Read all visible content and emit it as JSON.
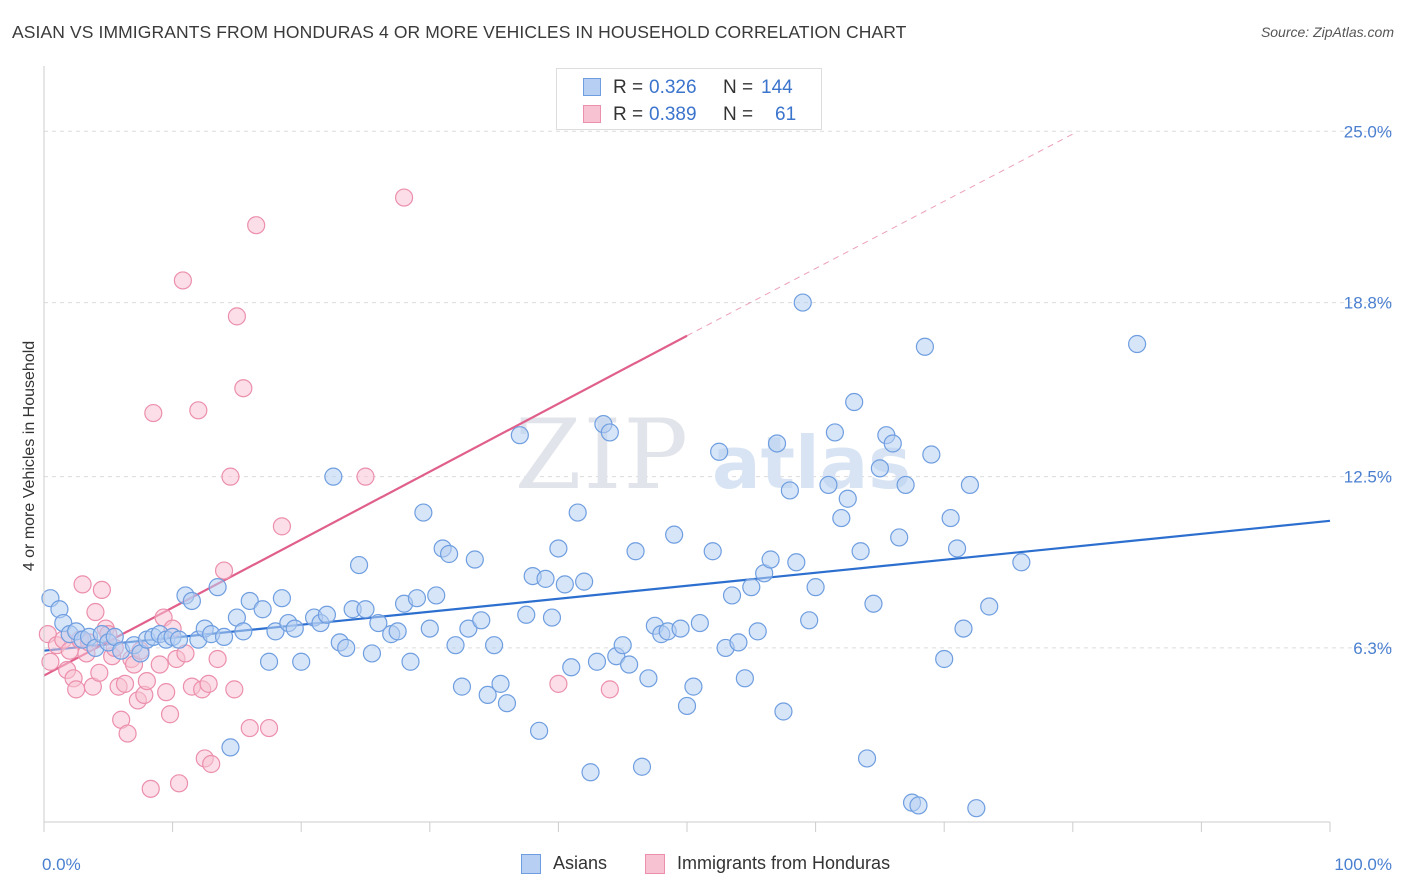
{
  "title": "ASIAN VS IMMIGRANTS FROM HONDURAS 4 OR MORE VEHICLES IN HOUSEHOLD CORRELATION CHART",
  "source": "Source: ZipAtlas.com",
  "watermark": "ZIPatlas",
  "colors": {
    "asians_fill": "#b7cff3",
    "asians_stroke": "#6f9ee0",
    "asians_line": "#2d6fcf",
    "honduras_fill": "#f7c3d3",
    "honduras_stroke": "#ec8fac",
    "honduras_line": "#e0608b",
    "tick_text": "#4a7fd0"
  },
  "stats": {
    "asians": {
      "r_label": "R =",
      "r": "0.326",
      "n_label": "N =",
      "n": "144"
    },
    "honduras": {
      "r_label": "R =",
      "r": "0.389",
      "n_label": "N =",
      "n": "61"
    }
  },
  "legend": {
    "asians": "Asians",
    "honduras": "Immigrants from Honduras"
  },
  "chart_data": {
    "type": "scatter",
    "title": "ASIAN VS IMMIGRANTS FROM HONDURAS 4 OR MORE VEHICLES IN HOUSEHOLD CORRELATION CHART",
    "xlabel": "",
    "ylabel": "4 or more Vehicles in Household",
    "xlim": [
      0,
      100
    ],
    "ylim": [
      0,
      27
    ],
    "x_tick_labels": [
      "0.0%",
      "100.0%"
    ],
    "y_ticks": [
      6.3,
      12.5,
      18.8,
      25.0
    ],
    "y_tick_labels": [
      "6.3%",
      "12.5%",
      "18.8%",
      "25.0%"
    ],
    "grid": "horizontal dashed",
    "legend_position": "bottom-center",
    "series": [
      {
        "name": "Asians",
        "trend": {
          "x": [
            0,
            100
          ],
          "y": [
            6.2,
            10.9
          ]
        },
        "points": [
          [
            0.5,
            8.1
          ],
          [
            1.2,
            7.7
          ],
          [
            1.5,
            7.2
          ],
          [
            2,
            6.8
          ],
          [
            2.5,
            6.9
          ],
          [
            3,
            6.6
          ],
          [
            3.5,
            6.7
          ],
          [
            4,
            6.3
          ],
          [
            4.5,
            6.8
          ],
          [
            5,
            6.5
          ],
          [
            5.5,
            6.7
          ],
          [
            6,
            6.2
          ],
          [
            7,
            6.4
          ],
          [
            7.5,
            6.1
          ],
          [
            8,
            6.6
          ],
          [
            8.5,
            6.7
          ],
          [
            9,
            6.8
          ],
          [
            9.5,
            6.6
          ],
          [
            10,
            6.7
          ],
          [
            10.5,
            6.6
          ],
          [
            11,
            8.2
          ],
          [
            11.5,
            8.0
          ],
          [
            12,
            6.6
          ],
          [
            12.5,
            7.0
          ],
          [
            13,
            6.8
          ],
          [
            13.5,
            8.5
          ],
          [
            14,
            6.7
          ],
          [
            14.5,
            2.7
          ],
          [
            15,
            7.4
          ],
          [
            15.5,
            6.9
          ],
          [
            16,
            8.0
          ],
          [
            17,
            7.7
          ],
          [
            17.5,
            5.8
          ],
          [
            18,
            6.9
          ],
          [
            18.5,
            8.1
          ],
          [
            19,
            7.2
          ],
          [
            19.5,
            7.0
          ],
          [
            20,
            5.8
          ],
          [
            21,
            7.4
          ],
          [
            21.5,
            7.2
          ],
          [
            22,
            7.5
          ],
          [
            22.5,
            12.5
          ],
          [
            23,
            6.5
          ],
          [
            23.5,
            6.3
          ],
          [
            24,
            7.7
          ],
          [
            24.5,
            9.3
          ],
          [
            25,
            7.7
          ],
          [
            25.5,
            6.1
          ],
          [
            26,
            7.2
          ],
          [
            27,
            6.8
          ],
          [
            27.5,
            6.9
          ],
          [
            28,
            7.9
          ],
          [
            28.5,
            5.8
          ],
          [
            29,
            8.1
          ],
          [
            29.5,
            11.2
          ],
          [
            30,
            7.0
          ],
          [
            30.5,
            8.2
          ],
          [
            31,
            9.9
          ],
          [
            31.5,
            9.7
          ],
          [
            32,
            6.4
          ],
          [
            32.5,
            4.9
          ],
          [
            33,
            7.0
          ],
          [
            33.5,
            9.5
          ],
          [
            34,
            7.3
          ],
          [
            34.5,
            4.6
          ],
          [
            35,
            6.4
          ],
          [
            35.5,
            5.0
          ],
          [
            36,
            4.3
          ],
          [
            37,
            14.0
          ],
          [
            37.5,
            7.5
          ],
          [
            38,
            8.9
          ],
          [
            38.5,
            3.3
          ],
          [
            39,
            8.8
          ],
          [
            39.5,
            7.4
          ],
          [
            40,
            9.9
          ],
          [
            40.5,
            8.6
          ],
          [
            41,
            5.6
          ],
          [
            41.5,
            11.2
          ],
          [
            42,
            8.7
          ],
          [
            42.5,
            1.8
          ],
          [
            43,
            5.8
          ],
          [
            43.5,
            14.4
          ],
          [
            44,
            14.1
          ],
          [
            44.5,
            6.0
          ],
          [
            45,
            6.4
          ],
          [
            45.5,
            5.7
          ],
          [
            46,
            9.8
          ],
          [
            46.5,
            2.0
          ],
          [
            47,
            5.2
          ],
          [
            47.5,
            7.1
          ],
          [
            48,
            6.8
          ],
          [
            48.5,
            6.9
          ],
          [
            49,
            10.4
          ],
          [
            49.5,
            7.0
          ],
          [
            50,
            4.2
          ],
          [
            50.5,
            4.9
          ],
          [
            51,
            7.2
          ],
          [
            52,
            9.8
          ],
          [
            52.5,
            13.4
          ],
          [
            53,
            6.3
          ],
          [
            53.5,
            8.2
          ],
          [
            54,
            6.5
          ],
          [
            54.5,
            5.2
          ],
          [
            55,
            8.5
          ],
          [
            55.5,
            6.9
          ],
          [
            56,
            9.0
          ],
          [
            56.5,
            9.5
          ],
          [
            57,
            13.7
          ],
          [
            57.5,
            4.0
          ],
          [
            58,
            12.0
          ],
          [
            58.5,
            9.4
          ],
          [
            59,
            18.8
          ],
          [
            59.5,
            7.3
          ],
          [
            60,
            8.5
          ],
          [
            61,
            12.2
          ],
          [
            61.5,
            14.1
          ],
          [
            62,
            11.0
          ],
          [
            62.5,
            11.7
          ],
          [
            63,
            15.2
          ],
          [
            63.5,
            9.8
          ],
          [
            64,
            2.3
          ],
          [
            64.5,
            7.9
          ],
          [
            65,
            12.8
          ],
          [
            65.5,
            14.0
          ],
          [
            66,
            13.7
          ],
          [
            66.5,
            10.3
          ],
          [
            67,
            12.2
          ],
          [
            67.5,
            0.7
          ],
          [
            68,
            0.6
          ],
          [
            68.5,
            17.2
          ],
          [
            69,
            13.3
          ],
          [
            70,
            5.9
          ],
          [
            70.5,
            11.0
          ],
          [
            71,
            9.9
          ],
          [
            71.5,
            7.0
          ],
          [
            72,
            12.2
          ],
          [
            72.5,
            0.5
          ],
          [
            73.5,
            7.8
          ],
          [
            76,
            9.4
          ],
          [
            85,
            17.3
          ]
        ]
      },
      {
        "name": "Immigrants from Honduras",
        "trend": {
          "x": [
            0,
            50
          ],
          "y": [
            5.3,
            17.6
          ]
        },
        "trend_extension": {
          "x": [
            50,
            80
          ],
          "y": [
            17.6,
            24.9
          ]
        },
        "points": [
          [
            0.3,
            6.8
          ],
          [
            0.5,
            5.8
          ],
          [
            1,
            6.4
          ],
          [
            1.5,
            6.6
          ],
          [
            1.8,
            5.5
          ],
          [
            2,
            6.2
          ],
          [
            2.3,
            5.2
          ],
          [
            2.5,
            4.8
          ],
          [
            2.8,
            6.6
          ],
          [
            3,
            8.6
          ],
          [
            3.3,
            6.1
          ],
          [
            3.5,
            6.5
          ],
          [
            3.8,
            4.9
          ],
          [
            4,
            7.6
          ],
          [
            4.3,
            5.4
          ],
          [
            4.5,
            8.4
          ],
          [
            4.8,
            7.0
          ],
          [
            5,
            6.8
          ],
          [
            5.3,
            6.0
          ],
          [
            5.5,
            6.3
          ],
          [
            5.8,
            4.9
          ],
          [
            6,
            3.7
          ],
          [
            6.3,
            5.0
          ],
          [
            6.5,
            3.2
          ],
          [
            6.8,
            5.9
          ],
          [
            7,
            5.7
          ],
          [
            7.3,
            4.4
          ],
          [
            7.5,
            6.2
          ],
          [
            7.8,
            4.6
          ],
          [
            8,
            5.1
          ],
          [
            8.3,
            1.2
          ],
          [
            8.5,
            14.8
          ],
          [
            9,
            5.7
          ],
          [
            9.3,
            7.4
          ],
          [
            9.5,
            4.7
          ],
          [
            9.8,
            3.9
          ],
          [
            10,
            7.0
          ],
          [
            10.3,
            5.9
          ],
          [
            10.5,
            1.4
          ],
          [
            10.8,
            19.6
          ],
          [
            11,
            6.1
          ],
          [
            11.5,
            4.9
          ],
          [
            12,
            14.9
          ],
          [
            12.3,
            4.8
          ],
          [
            12.5,
            2.3
          ],
          [
            12.8,
            5.0
          ],
          [
            13,
            2.1
          ],
          [
            13.5,
            5.9
          ],
          [
            14,
            9.1
          ],
          [
            14.5,
            12.5
          ],
          [
            14.8,
            4.8
          ],
          [
            15,
            18.3
          ],
          [
            15.5,
            15.7
          ],
          [
            16,
            3.4
          ],
          [
            16.5,
            21.6
          ],
          [
            17.5,
            3.4
          ],
          [
            18.5,
            10.7
          ],
          [
            25,
            12.5
          ],
          [
            28,
            22.6
          ],
          [
            40,
            5.0
          ],
          [
            44,
            4.8
          ]
        ]
      }
    ]
  }
}
